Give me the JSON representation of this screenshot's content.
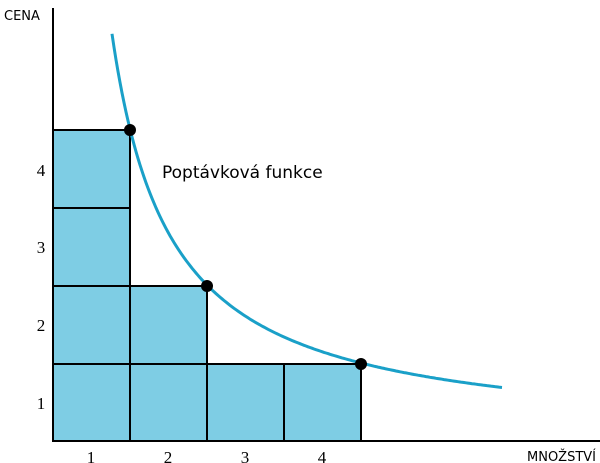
{
  "axes": {
    "y_label": "CENA",
    "x_label": "MNOŽSTVÍ"
  },
  "curve_label": "Poptávková funkce",
  "y_ticks": [
    "1",
    "2",
    "3",
    "4"
  ],
  "x_ticks": [
    "1",
    "2",
    "3",
    "4"
  ]
}
